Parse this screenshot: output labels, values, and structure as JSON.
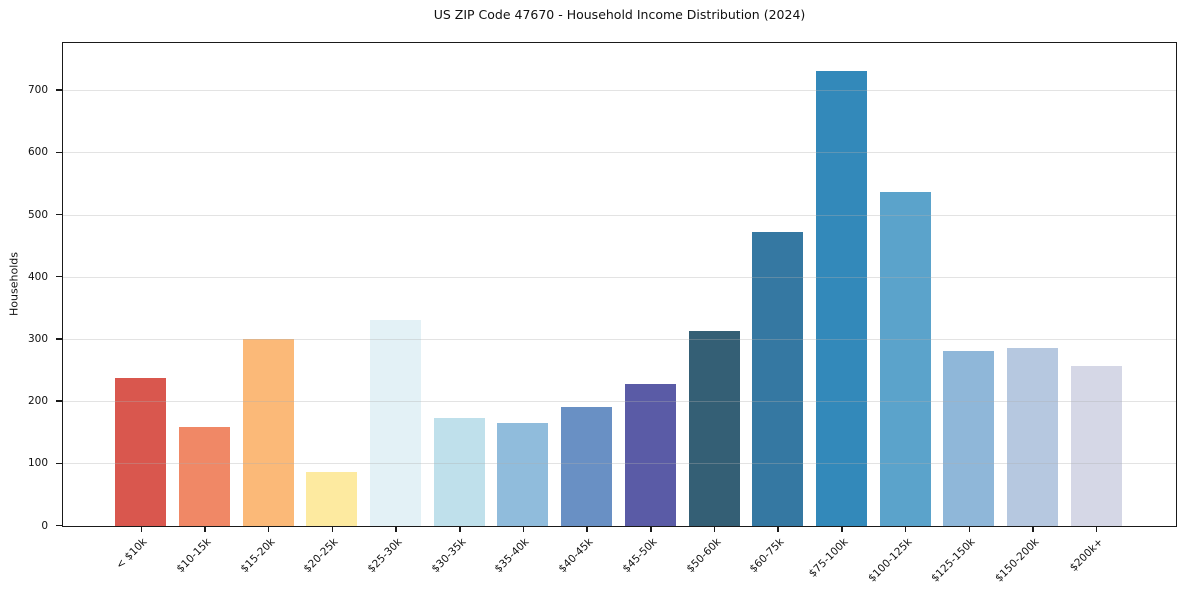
{
  "title": "US ZIP Code 47670 - Household Income Distribution (2024)",
  "chart_data": {
    "type": "bar",
    "title": "US ZIP Code 47670 - Household Income Distribution (2024)",
    "xlabel": "",
    "ylabel": "Households",
    "categories": [
      "< $10k",
      "$10-15k",
      "$15-20k",
      "$20-25k",
      "$25-30k",
      "$30-35k",
      "$35-40k",
      "$40-45k",
      "$45-50k",
      "$50-60k",
      "$60-75k",
      "$75-100k",
      "$100-125k",
      "$125-150k",
      "$150-200k",
      "$200k+"
    ],
    "values": [
      238,
      160,
      301,
      87,
      332,
      173,
      166,
      191,
      228,
      313,
      472,
      731,
      537,
      281,
      287,
      258
    ],
    "bar_colors": [
      "#d9574e",
      "#f08866",
      "#fbb978",
      "#fdeaa0",
      "#e3f1f6",
      "#bfe0eb",
      "#90bcdc",
      "#6990c4",
      "#5a5ba6",
      "#345f75",
      "#3578a2",
      "#3389ba",
      "#5ba3cb",
      "#8fb7d9",
      "#b6c8e0",
      "#d5d7e6"
    ],
    "ylim": [
      0,
      775
    ],
    "yticks": [
      0,
      100,
      200,
      300,
      400,
      500,
      600,
      700
    ],
    "grid": "horizontal-only",
    "grid_color": "#b0b0b0",
    "axis_color": "#1a1a1a",
    "background": "#ffffff",
    "legend": "none",
    "x_tick_rotation_deg": 45
  }
}
